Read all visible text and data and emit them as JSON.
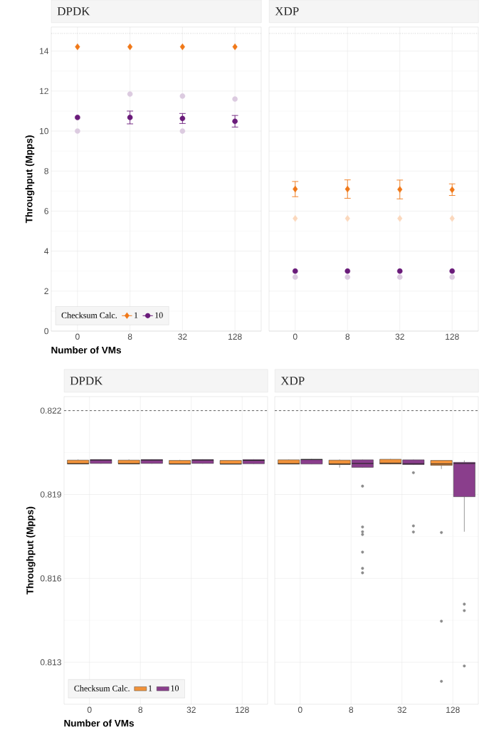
{
  "chart_data": [
    {
      "type": "scatter",
      "title": "DPDK",
      "xlabel": "Number of VMs",
      "ylabel": "Throughput (Mpps)",
      "legend_title": "Checksum Calc.",
      "legend": "bottom left",
      "grid": true,
      "categories": [
        "0",
        "8",
        "32",
        "128"
      ],
      "ylim": [
        0,
        15.2
      ],
      "yticks": [
        0,
        2,
        4,
        6,
        8,
        10,
        12,
        14
      ],
      "ref_lines": [
        {
          "axis": "y",
          "value": 14.88,
          "color": "#888888",
          "line_style": "dotted"
        }
      ],
      "series": [
        {
          "color": "#dccbe0",
          "marker": "circle",
          "x": [
            "0",
            "8",
            "32",
            "32",
            "128"
          ],
          "values": [
            10.0,
            11.85,
            11.75,
            10.0,
            11.6
          ]
        },
        {
          "name": "1",
          "color": "#f07818",
          "marker": "diamond",
          "values": [
            14.21,
            14.21,
            14.21,
            14.21
          ]
        },
        {
          "name": "10",
          "color": "#6a1b7a",
          "marker": "circle",
          "values": [
            10.68,
            10.68,
            10.63,
            10.49
          ],
          "errors": [
            null,
            0.32,
            0.25,
            0.29
          ]
        }
      ]
    },
    {
      "type": "scatter",
      "title": "XDP",
      "tick_labels": "x",
      "grid": true,
      "categories": [
        "0",
        "8",
        "32",
        "128"
      ],
      "ylim": [
        0,
        15.2
      ],
      "yticks": [
        0,
        2,
        4,
        6,
        8,
        10,
        12,
        14
      ],
      "ref_lines": [
        {
          "axis": "y",
          "value": 14.88,
          "color": "#888888",
          "line_style": "dotted"
        }
      ],
      "series": [
        {
          "color": "#fbd8bd",
          "marker": "diamond",
          "x": [
            "0",
            "8",
            "32",
            "128"
          ],
          "values": [
            5.63,
            5.63,
            5.63,
            5.63
          ]
        },
        {
          "color": "#dccbe0",
          "marker": "circle",
          "x": [
            "0",
            "8",
            "32",
            "128"
          ],
          "values": [
            2.7,
            2.7,
            2.7,
            2.7
          ]
        },
        {
          "color": "#f07818",
          "marker": "diamond",
          "values": [
            7.1,
            7.1,
            7.08,
            7.07
          ],
          "errors": [
            0.38,
            0.46,
            0.47,
            0.29
          ]
        },
        {
          "color": "#6a1b7a",
          "marker": "circle",
          "values": [
            3.0,
            3.0,
            3.0,
            3.0
          ]
        }
      ]
    },
    {
      "type": "box",
      "title": "DPDK",
      "xlabel": "Number of VMs",
      "ylabel": "Throughput (Mpps)",
      "legend_title": "Checksum Calc.",
      "legend": "bottom left",
      "grid": true,
      "categories": [
        "0",
        "8",
        "32",
        "128"
      ],
      "ylim": [
        0.8115,
        0.8225
      ],
      "yticks": [
        0.813,
        0.816,
        0.819,
        0.822
      ],
      "ref_lines": [
        {
          "axis": "y",
          "value": 0.822,
          "color": "#000000",
          "line_style": "dashed"
        }
      ],
      "series": [
        {
          "name": "1",
          "color": "#f0923a",
          "boxes": [
            {
              "low": 0.82009,
              "q1": 0.8201,
              "median": 0.8201,
              "q3": 0.82023,
              "high": 0.82025
            },
            {
              "low": 0.82009,
              "q1": 0.8201,
              "median": 0.8201,
              "q3": 0.82023,
              "high": 0.82025
            },
            {
              "low": 0.82008,
              "q1": 0.82009,
              "median": 0.82009,
              "q3": 0.82022,
              "high": 0.82024
            },
            {
              "low": 0.82008,
              "q1": 0.82009,
              "median": 0.82009,
              "q3": 0.82022,
              "high": 0.82022
            }
          ]
        },
        {
          "name": "10",
          "color": "#8a3e8c",
          "boxes": [
            {
              "low": 0.8201,
              "q1": 0.82011,
              "median": 0.82023,
              "q3": 0.82025,
              "high": 0.82026
            },
            {
              "low": 0.8201,
              "q1": 0.82011,
              "median": 0.82023,
              "q3": 0.82025,
              "high": 0.82026
            },
            {
              "low": 0.8201,
              "q1": 0.82011,
              "median": 0.82023,
              "q3": 0.82025,
              "high": 0.82026
            },
            {
              "low": 0.82009,
              "q1": 0.8201,
              "median": 0.82022,
              "q3": 0.82025,
              "high": 0.82026
            }
          ]
        }
      ]
    },
    {
      "type": "box",
      "title": "XDP",
      "tick_labels": "x",
      "grid": true,
      "categories": [
        "0",
        "8",
        "32",
        "128"
      ],
      "ylim": [
        0.8115,
        0.8225
      ],
      "yticks": [
        0.813,
        0.816,
        0.819,
        0.822
      ],
      "ref_lines": [
        {
          "axis": "y",
          "value": 0.822,
          "color": "#000000",
          "line_style": "dashed"
        }
      ],
      "series": [
        {
          "color": "#f0923a",
          "boxes": [
            {
              "low": 0.82008,
              "q1": 0.82009,
              "median": 0.8201,
              "q3": 0.82024,
              "high": 0.82025
            },
            {
              "low": 0.81996,
              "q1": 0.82007,
              "median": 0.82009,
              "q3": 0.82023,
              "high": 0.82025
            },
            {
              "low": 0.82008,
              "q1": 0.82009,
              "median": 0.82012,
              "q3": 0.82026,
              "high": 0.82027
            },
            {
              "low": 0.81991,
              "q1": 0.82004,
              "median": 0.82009,
              "q3": 0.82022,
              "high": 0.82022,
              "outliers": [
                0.81764,
                0.81447,
                0.81232
              ]
            }
          ]
        },
        {
          "color": "#8a3e8c",
          "boxes": [
            {
              "low": 0.82008,
              "q1": 0.82009,
              "median": 0.82025,
              "q3": 0.82026,
              "high": 0.82027
            },
            {
              "low": 0.81996,
              "q1": 0.81997,
              "median": 0.82011,
              "q3": 0.82024,
              "high": 0.82025,
              "outliers": [
                0.8193,
                0.81784,
                0.81767,
                0.81757,
                0.81694,
                0.81636,
                0.8162
              ]
            },
            {
              "low": 0.82006,
              "q1": 0.82007,
              "median": 0.8201,
              "q3": 0.82024,
              "high": 0.82025,
              "outliers": [
                0.81978,
                0.81788,
                0.81766
              ]
            },
            {
              "low": 0.81767,
              "q1": 0.81892,
              "median": 0.82011,
              "q3": 0.82015,
              "high": 0.82022,
              "outliers": [
                0.81508,
                0.81485,
                0.81287
              ]
            }
          ]
        }
      ]
    }
  ]
}
